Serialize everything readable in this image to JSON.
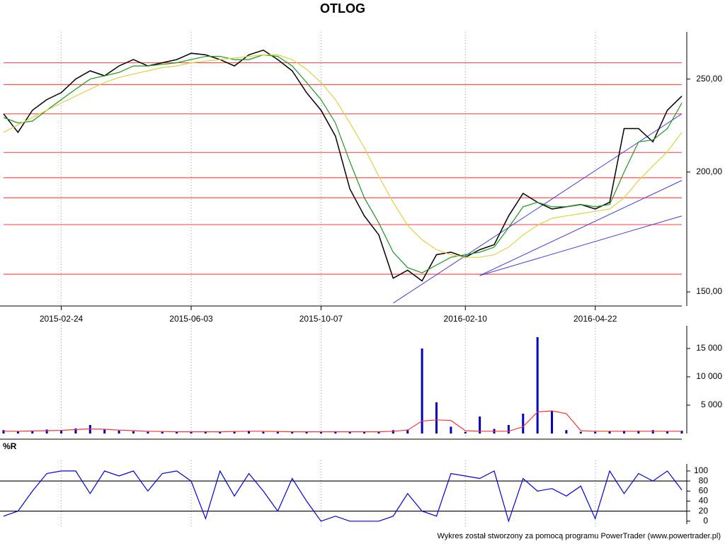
{
  "chart_data": [
    {
      "type": "line",
      "title": "OTLOG",
      "log": true,
      "categories": [
        null,
        null,
        null,
        null,
        "2015-02-24",
        null,
        null,
        null,
        null,
        null,
        null,
        null,
        null,
        "2015-06-03",
        null,
        null,
        null,
        null,
        null,
        null,
        null,
        null,
        "2015-10-07",
        null,
        null,
        null,
        null,
        null,
        null,
        null,
        null,
        null,
        "2016-02-10",
        null,
        null,
        null,
        null,
        null,
        null,
        null,
        null,
        "2016-04-22",
        null,
        null,
        null,
        null,
        null,
        null
      ],
      "series": [
        {
          "color": "#000000",
          "values": [
            230,
            220,
            232,
            238,
            242,
            250,
            255,
            252,
            258,
            262,
            258,
            260,
            262,
            266,
            265,
            262,
            258,
            265,
            268,
            262,
            255,
            242,
            232,
            218,
            192,
            180,
            172,
            155,
            158,
            154,
            164,
            165,
            163,
            166,
            168,
            180,
            190,
            186,
            183,
            184,
            185,
            183,
            186,
            222,
            222,
            215,
            232,
            240
          ]
        },
        {
          "color": "#1a9a1a",
          "values": [
            228,
            225,
            226,
            232,
            238,
            244,
            250,
            252,
            254,
            258,
            258,
            259,
            260,
            262,
            264,
            264,
            262,
            262,
            265,
            264,
            258,
            248,
            238,
            225,
            205,
            188,
            177,
            165,
            159,
            157,
            160,
            163,
            164,
            165,
            167,
            175,
            184,
            186,
            184,
            184,
            185,
            184,
            185,
            200,
            215,
            216,
            222,
            236
          ]
        },
        {
          "color": "#e0d040",
          "values": [
            220,
            224,
            228,
            232,
            236,
            240,
            244,
            248,
            251,
            253,
            255,
            257,
            258,
            260,
            261,
            262,
            263,
            264,
            265,
            265,
            262,
            256,
            248,
            238,
            225,
            212,
            198,
            186,
            176,
            170,
            166,
            164,
            163,
            163,
            164,
            167,
            172,
            176,
            179,
            180,
            181,
            182,
            183,
            188,
            196,
            203,
            210,
            220
          ]
        }
      ],
      "levels": [
        260,
        246.7,
        230,
        209.6,
        197.3,
        188,
        176.3,
        156.5
      ],
      "level_color": "#ff5050",
      "trendlines": [
        {
          "x": [
            27,
            47
          ],
          "y": [
            146,
            230
          ]
        },
        {
          "x": [
            33,
            47
          ],
          "y": [
            156,
            196
          ]
        },
        {
          "x": [
            33,
            47
          ],
          "y": [
            156,
            180
          ]
        }
      ],
      "trend_color": "#4040e0",
      "ylim": [
        145,
        280
      ],
      "yticks": [
        {
          "value": 150,
          "label": "150,00"
        },
        {
          "value": 200,
          "label": "200,00"
        },
        {
          "value": 250,
          "label": "250,00"
        }
      ]
    },
    {
      "type": "bar",
      "series": [
        {
          "color": "#0000c0",
          "values": [
            600,
            400,
            500,
            700,
            500,
            900,
            1500,
            800,
            500,
            400,
            300,
            300,
            300,
            300,
            400,
            300,
            400,
            500,
            300,
            400,
            300,
            300,
            300,
            400,
            300,
            300,
            300,
            600,
            700,
            15000,
            5500,
            1200,
            300,
            3000,
            800,
            1500,
            3500,
            17000,
            4000,
            600,
            300,
            300,
            400,
            500,
            500,
            600,
            400,
            500
          ]
        },
        {
          "color": "#ff3030",
          "values": [
            400,
            400,
            450,
            500,
            550,
            700,
            800,
            750,
            600,
            500,
            400,
            350,
            300,
            300,
            300,
            300,
            350,
            400,
            400,
            350,
            300,
            300,
            300,
            300,
            300,
            300,
            300,
            400,
            600,
            2200,
            2400,
            2300,
            500,
            400,
            400,
            400,
            1200,
            3800,
            4000,
            3500,
            500,
            400,
            400,
            400,
            400,
            400,
            400,
            400
          ]
        }
      ],
      "ylim": [
        0,
        19000
      ],
      "yticks": [
        {
          "value": 5000,
          "label": "5 000"
        },
        {
          "value": 10000,
          "label": "10 000"
        },
        {
          "value": 15000,
          "label": "15 000"
        }
      ]
    },
    {
      "type": "line",
      "title": "%R",
      "series": [
        {
          "color": "#0000e0",
          "values": [
            10,
            20,
            60,
            95,
            100,
            100,
            55,
            100,
            90,
            100,
            60,
            95,
            100,
            80,
            5,
            100,
            50,
            95,
            60,
            20,
            85,
            40,
            0,
            10,
            0,
            0,
            0,
            10,
            55,
            20,
            10,
            95,
            90,
            85,
            100,
            0,
            85,
            60,
            65,
            50,
            70,
            5,
            100,
            55,
            95,
            80,
            100,
            62
          ]
        }
      ],
      "levels": [
        20,
        80
      ],
      "level_color": "#000000",
      "ylim": [
        -6,
        114
      ],
      "yticks": [
        0,
        20,
        40,
        60,
        80,
        100
      ]
    }
  ],
  "footer": "Wykres został stworzony za pomocą programu PowerTrader (www.powertrader.pl)"
}
